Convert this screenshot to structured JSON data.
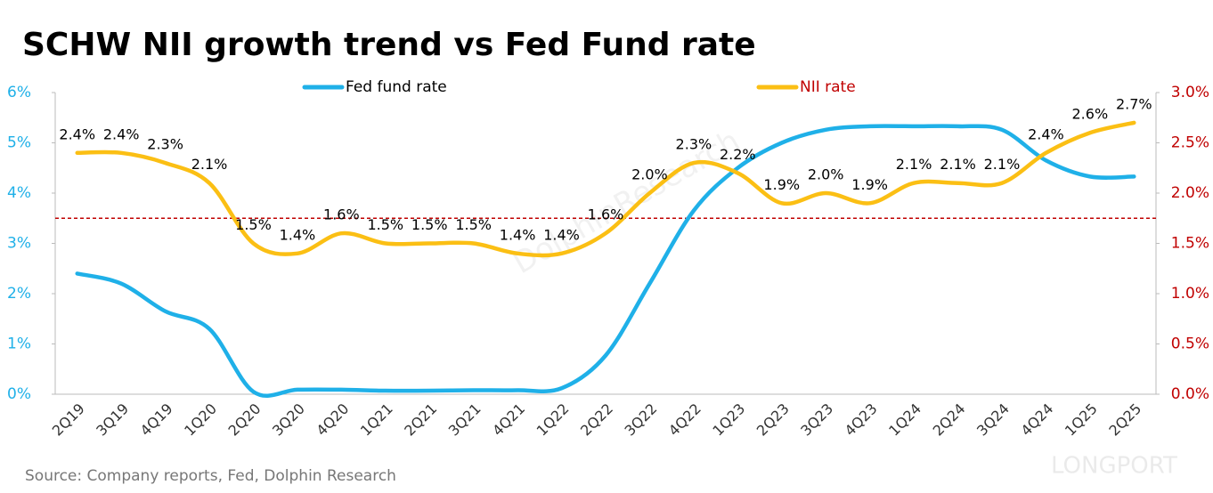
{
  "chart_data": {
    "type": "line",
    "title": "SCHW NII growth trend vs Fed Fund rate",
    "source": "Source: Company reports, Fed, Dolphin Research",
    "watermarks": [
      "DolphinResearch",
      "LONGPORT"
    ],
    "categories": [
      "2Q19",
      "3Q19",
      "4Q19",
      "1Q20",
      "2Q20",
      "3Q20",
      "4Q20",
      "1Q21",
      "2Q21",
      "3Q21",
      "4Q21",
      "1Q22",
      "2Q22",
      "3Q22",
      "4Q22",
      "1Q23",
      "2Q23",
      "3Q23",
      "4Q23",
      "1Q24",
      "2Q24",
      "3Q24",
      "4Q24",
      "1Q25",
      "2Q25"
    ],
    "series": [
      {
        "name": "Fed fund rate",
        "color": "#1fb0e8",
        "axis": "y",
        "values": [
          2.4,
          2.2,
          1.65,
          1.3,
          0.05,
          0.09,
          0.09,
          0.07,
          0.07,
          0.08,
          0.08,
          0.12,
          0.77,
          2.2,
          3.65,
          4.5,
          5.0,
          5.26,
          5.33,
          5.33,
          5.33,
          5.26,
          4.65,
          4.33,
          4.33
        ]
      },
      {
        "name": "NII rate",
        "color": "#fbbf14",
        "axis": "y2",
        "values": [
          2.4,
          2.4,
          2.3,
          2.1,
          1.5,
          1.4,
          1.6,
          1.5,
          1.5,
          1.5,
          1.4,
          1.4,
          1.6,
          2.0,
          2.3,
          2.2,
          1.9,
          2.0,
          1.9,
          2.1,
          2.1,
          2.1,
          2.4,
          2.6,
          2.7
        ],
        "value_labels": [
          "2.4%",
          "2.4%",
          "2.3%",
          "2.1%",
          "1.5%",
          "1.4%",
          "1.6%",
          "1.5%",
          "1.5%",
          "1.5%",
          "1.4%",
          "1.4%",
          "1.6%",
          "2.0%",
          "2.3%",
          "2.2%",
          "1.9%",
          "2.0%",
          "1.9%",
          "2.1%",
          "2.1%",
          "2.1%",
          "2.4%",
          "2.6%",
          "2.7%"
        ]
      }
    ],
    "ylim": [
      0,
      6
    ],
    "yticks": [
      {
        "value": 0,
        "label": "0%"
      },
      {
        "value": 1,
        "label": "1%"
      },
      {
        "value": 2,
        "label": "2%"
      },
      {
        "value": 3,
        "label": "3%"
      },
      {
        "value": 4,
        "label": "4%"
      },
      {
        "value": 5,
        "label": "5%"
      },
      {
        "value": 6,
        "label": "6%"
      }
    ],
    "y2lim": [
      0,
      3
    ],
    "y2ticks": [
      {
        "value": 0,
        "label": "0.0%"
      },
      {
        "value": 0.5,
        "label": "0.5%"
      },
      {
        "value": 1,
        "label": "1.0%"
      },
      {
        "value": 1.5,
        "label": "1.5%"
      },
      {
        "value": 2,
        "label": "2.0%"
      },
      {
        "value": 2.5,
        "label": "2.5%"
      },
      {
        "value": 3,
        "label": "3.0%"
      }
    ],
    "y_tick_color": "#1fb0e8",
    "y2_tick_color": "#c00000",
    "reference_line": {
      "value": 3.5,
      "axis": "y",
      "color": "#c00000"
    }
  }
}
